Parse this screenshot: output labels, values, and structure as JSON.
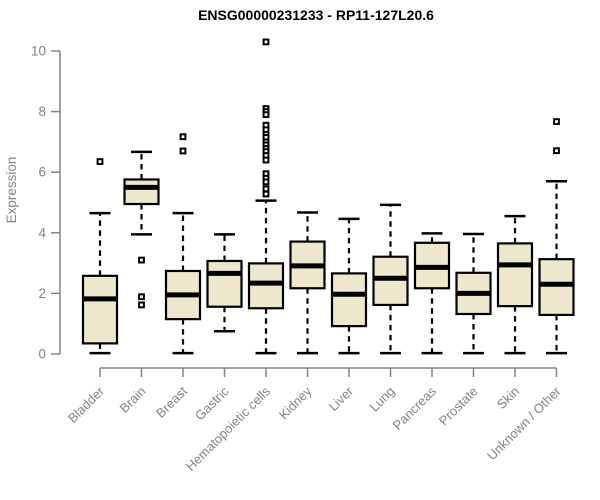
{
  "page": {
    "background": "#ffffff"
  },
  "chart_data": {
    "type": "boxplot",
    "title": "ENSG00000231233 - RP11-127L20.6",
    "ylabel": "Expression",
    "xlabel": "",
    "ylim": [
      0,
      10
    ],
    "yticks": [
      0,
      2,
      4,
      6,
      8,
      10
    ],
    "grid": false,
    "legend": false,
    "whisker_line_style": "dashed",
    "outlier_marker": "small-open-square",
    "colors": {
      "box_fill": "#EDE8CD",
      "box_stroke": "#000000",
      "median": "#000000",
      "whisker": "#000000",
      "outlier": "#000000",
      "axis": "#848484",
      "tick_label": "#848484",
      "title": "#000000"
    },
    "categories": [
      "Bladder",
      "Brain",
      "Breast",
      "Gastric",
      "Hematopoietic cells",
      "Kidney",
      "Liver",
      "Lung",
      "Pancreas",
      "Prostate",
      "Skin",
      "Unknown / Other"
    ],
    "boxes": [
      {
        "category": "Bladder",
        "whisker_low": 0.03,
        "q1": 0.35,
        "median": 1.82,
        "q3": 2.58,
        "whisker_high": 4.65,
        "outliers": [
          6.35
        ]
      },
      {
        "category": "Brain",
        "whisker_low": 3.95,
        "q1": 4.95,
        "median": 5.5,
        "q3": 5.76,
        "whisker_high": 6.67,
        "outliers": [
          3.1,
          1.89,
          1.62
        ]
      },
      {
        "category": "Breast",
        "whisker_low": 0.03,
        "q1": 1.15,
        "median": 1.95,
        "q3": 2.74,
        "whisker_high": 4.65,
        "outliers": [
          7.17,
          6.7
        ]
      },
      {
        "category": "Gastric",
        "whisker_low": 0.75,
        "q1": 1.56,
        "median": 2.66,
        "q3": 3.07,
        "whisker_high": 3.95,
        "outliers": []
      },
      {
        "category": "Hematopoietic cells",
        "whisker_low": 0.03,
        "q1": 1.51,
        "median": 2.34,
        "q3": 2.99,
        "whisker_high": 5.06,
        "outliers": [
          10.3,
          8.1,
          8.0,
          7.9,
          7.55,
          7.4,
          7.25,
          7.15,
          7.0,
          6.9,
          6.78,
          6.68,
          6.55,
          6.4,
          5.95,
          5.8,
          5.68,
          5.45,
          5.28
        ]
      },
      {
        "category": "Kidney",
        "whisker_low": 0.03,
        "q1": 2.17,
        "median": 2.91,
        "q3": 3.71,
        "whisker_high": 4.67,
        "outliers": []
      },
      {
        "category": "Liver",
        "whisker_low": 0.03,
        "q1": 0.92,
        "median": 1.97,
        "q3": 2.66,
        "whisker_high": 4.46,
        "outliers": []
      },
      {
        "category": "Lung",
        "whisker_low": 0.03,
        "q1": 1.62,
        "median": 2.5,
        "q3": 3.21,
        "whisker_high": 4.92,
        "outliers": []
      },
      {
        "category": "Pancreas",
        "whisker_low": 0.03,
        "q1": 2.17,
        "median": 2.86,
        "q3": 3.67,
        "whisker_high": 3.98,
        "outliers": []
      },
      {
        "category": "Prostate",
        "whisker_low": 0.03,
        "q1": 1.32,
        "median": 2.0,
        "q3": 2.68,
        "whisker_high": 3.96,
        "outliers": []
      },
      {
        "category": "Skin",
        "whisker_low": 0.03,
        "q1": 1.58,
        "median": 2.94,
        "q3": 3.65,
        "whisker_high": 4.55,
        "outliers": []
      },
      {
        "category": "Unknown / Other",
        "whisker_low": 0.03,
        "q1": 1.29,
        "median": 2.3,
        "q3": 3.13,
        "whisker_high": 5.7,
        "outliers": [
          7.67,
          6.71
        ]
      }
    ]
  }
}
